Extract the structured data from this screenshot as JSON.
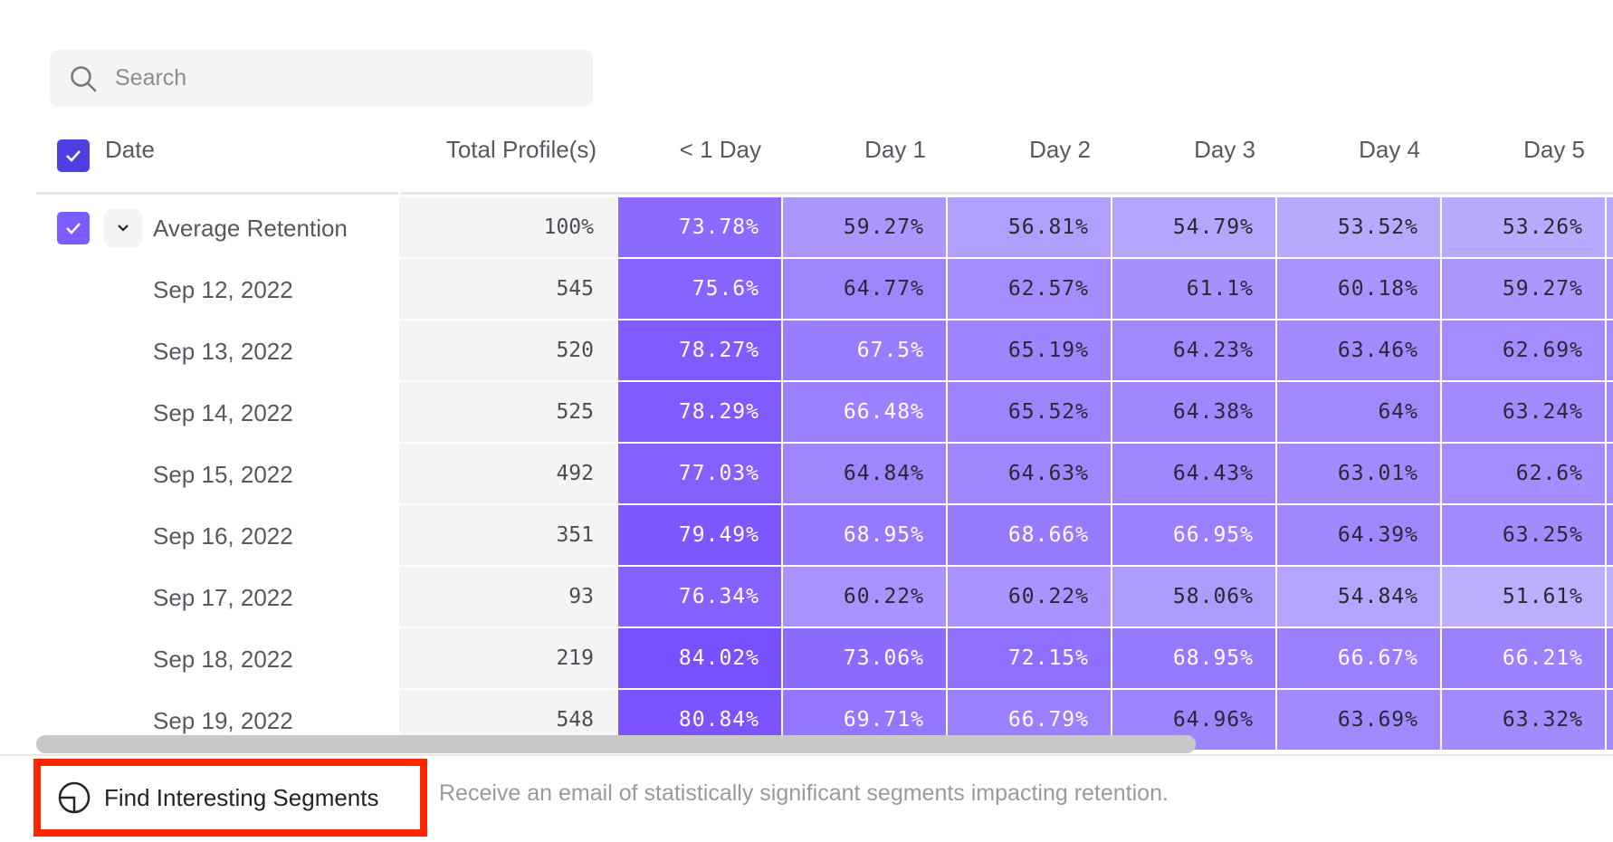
{
  "search": {
    "placeholder": "Search",
    "value": ""
  },
  "table": {
    "headers": [
      "Date",
      "Total Profile(s)",
      "< 1 Day",
      "Day 1",
      "Day 2",
      "Day 3",
      "Day 4",
      "Day 5"
    ],
    "rows": [
      {
        "label": "Average Retention",
        "total": "100%",
        "values": [
          "73.78%",
          "59.27%",
          "56.81%",
          "54.79%",
          "53.52%",
          "53.26%"
        ]
      },
      {
        "label": "Sep 12, 2022",
        "total": "545",
        "values": [
          "75.6%",
          "64.77%",
          "62.57%",
          "61.1%",
          "60.18%",
          "59.27%"
        ]
      },
      {
        "label": "Sep 13, 2022",
        "total": "520",
        "values": [
          "78.27%",
          "67.5%",
          "65.19%",
          "64.23%",
          "63.46%",
          "62.69%"
        ]
      },
      {
        "label": "Sep 14, 2022",
        "total": "525",
        "values": [
          "78.29%",
          "66.48%",
          "65.52%",
          "64.38%",
          "64%",
          "63.24%"
        ]
      },
      {
        "label": "Sep 15, 2022",
        "total": "492",
        "values": [
          "77.03%",
          "64.84%",
          "64.63%",
          "64.43%",
          "63.01%",
          "62.6%"
        ]
      },
      {
        "label": "Sep 16, 2022",
        "total": "351",
        "values": [
          "79.49%",
          "68.95%",
          "68.66%",
          "66.95%",
          "64.39%",
          "63.25%"
        ]
      },
      {
        "label": "Sep 17, 2022",
        "total": "93",
        "values": [
          "76.34%",
          "60.22%",
          "60.22%",
          "58.06%",
          "54.84%",
          "51.61%"
        ]
      },
      {
        "label": "Sep 18, 2022",
        "total": "219",
        "values": [
          "84.02%",
          "73.06%",
          "72.15%",
          "68.95%",
          "66.67%",
          "66.21%"
        ]
      },
      {
        "label": "Sep 19, 2022",
        "total": "548",
        "values": [
          "80.84%",
          "69.71%",
          "66.79%",
          "64.96%",
          "63.69%",
          "63.32%"
        ]
      }
    ]
  },
  "footer": {
    "button_label": "Find Interesting Segments",
    "description": "Receive an email of statistically significant segments impacting retention."
  },
  "colors": {
    "accent": "#4f3fe0",
    "checkbox": "#7b5cff",
    "cell_dark": "#7850ff",
    "cell_light": "#c0b4ff",
    "highlight": "#ff2600"
  }
}
